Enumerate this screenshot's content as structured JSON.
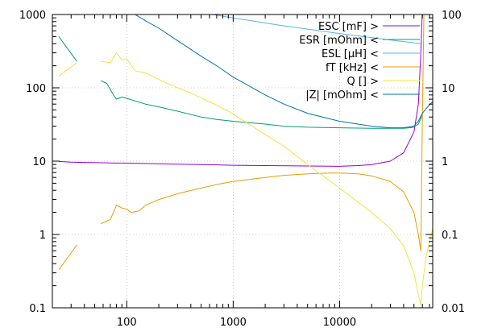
{
  "chart_data": {
    "type": "line",
    "title": "",
    "xlabel": "",
    "ylabel": "",
    "y2label": "",
    "x_scale": "log",
    "y_scale": "log",
    "y2_scale": "log",
    "xlim": [
      20,
      75000
    ],
    "ylim": [
      0.1,
      1000
    ],
    "y2lim": [
      0.01,
      100
    ],
    "grid": true,
    "legend_position": "top-right",
    "x_ticks": [
      {
        "value": 100,
        "label": "100"
      },
      {
        "value": 1000,
        "label": "1000"
      },
      {
        "value": 10000,
        "label": "10000"
      }
    ],
    "y_ticks": [
      {
        "value": 0.1,
        "label": "0.1"
      },
      {
        "value": 1,
        "label": "1"
      },
      {
        "value": 10,
        "label": "10"
      },
      {
        "value": 100,
        "label": "100"
      },
      {
        "value": 1000,
        "label": "1000"
      }
    ],
    "y2_ticks": [
      {
        "value": 0.01,
        "label": "0.01"
      },
      {
        "value": 0.1,
        "label": "0.1"
      },
      {
        "value": 1,
        "label": "1"
      },
      {
        "value": 10,
        "label": "10"
      },
      {
        "value": 100,
        "label": "100"
      }
    ],
    "series": [
      {
        "name": "ESC [mF] >",
        "color": "#9400d3",
        "axis": "y2",
        "segments": [
          [
            [
              23,
              0.99
            ],
            [
              30,
              0.97
            ],
            [
              40,
              0.96
            ],
            [
              60,
              0.95
            ],
            [
              80,
              0.94
            ],
            [
              100,
              0.94
            ],
            [
              150,
              0.93
            ],
            [
              200,
              0.92
            ],
            [
              300,
              0.91
            ],
            [
              500,
              0.9
            ],
            [
              1000,
              0.88
            ],
            [
              2000,
              0.87
            ],
            [
              5000,
              0.86
            ],
            [
              10000,
              0.85
            ],
            [
              15000,
              0.87
            ],
            [
              20000,
              0.9
            ],
            [
              30000,
              1.0
            ],
            [
              40000,
              1.3
            ],
            [
              50000,
              2.5
            ],
            [
              55000,
              6
            ],
            [
              58000,
              30
            ],
            [
              60000,
              120
            ]
          ]
        ]
      },
      {
        "name": "ESR [mOhm] <",
        "color": "#009e73",
        "axis": "y",
        "segments": [
          [
            [
              23,
              500
            ],
            [
              34,
              230
            ]
          ],
          [
            [
              57,
              125
            ],
            [
              65,
              115
            ],
            [
              70,
              95
            ],
            [
              75,
              80
            ],
            [
              80,
              70
            ],
            [
              90,
              75
            ],
            [
              100,
              72
            ],
            [
              150,
              60
            ],
            [
              200,
              55
            ],
            [
              300,
              48
            ],
            [
              500,
              40
            ],
            [
              700,
              37
            ],
            [
              1000,
              35
            ],
            [
              2000,
              32
            ],
            [
              3000,
              30
            ],
            [
              5000,
              29
            ],
            [
              10000,
              28.5
            ],
            [
              20000,
              28
            ],
            [
              30000,
              28
            ],
            [
              40000,
              28
            ],
            [
              45000,
              28.5
            ],
            [
              50000,
              29
            ],
            [
              55000,
              32
            ],
            [
              58000,
              38
            ],
            [
              60000,
              45
            ]
          ]
        ]
      },
      {
        "name": "ESL [μH] <",
        "color": "#56b4e9",
        "axis": "y",
        "segments": [
          [
            [
              25,
              1000
            ],
            [
              100,
              1500
            ],
            [
              300,
              1200
            ],
            [
              1000,
              900
            ],
            [
              3000,
              700
            ],
            [
              10000,
              550
            ],
            [
              30000,
              450
            ],
            [
              60000,
              400
            ]
          ]
        ]
      },
      {
        "name": "fT [kHz] <",
        "color": "#e69f00",
        "axis": "y",
        "segments": [
          [
            [
              23,
              0.33
            ],
            [
              34,
              0.72
            ]
          ],
          [
            [
              57,
              1.4
            ],
            [
              70,
              1.6
            ],
            [
              80,
              2.5
            ],
            [
              90,
              2.3
            ],
            [
              100,
              2.2
            ],
            [
              110,
              2.0
            ],
            [
              130,
              2.1
            ],
            [
              150,
              2.5
            ],
            [
              200,
              3.0
            ],
            [
              300,
              3.6
            ],
            [
              500,
              4.3
            ],
            [
              700,
              4.8
            ],
            [
              1000,
              5.3
            ],
            [
              2000,
              6.0
            ],
            [
              3000,
              6.4
            ],
            [
              5000,
              6.7
            ],
            [
              8000,
              6.9
            ],
            [
              10000,
              6.9
            ],
            [
              15000,
              6.7
            ],
            [
              20000,
              6.3
            ],
            [
              30000,
              5.3
            ],
            [
              40000,
              3.8
            ],
            [
              50000,
              2.0
            ],
            [
              55000,
              1.0
            ],
            [
              58000,
              0.6
            ],
            [
              60000,
              40
            ],
            [
              62000,
              1000
            ]
          ]
        ]
      },
      {
        "name": "Q [] >",
        "color": "#f0e442",
        "axis": "y2",
        "segments": [
          [
            [
              23,
              14.5
            ],
            [
              34,
              22
            ]
          ],
          [
            [
              57,
              23
            ],
            [
              70,
              22
            ],
            [
              80,
              30
            ],
            [
              90,
              24
            ],
            [
              100,
              25
            ],
            [
              120,
              17
            ],
            [
              150,
              16
            ],
            [
              200,
              13
            ],
            [
              300,
              10
            ],
            [
              400,
              8.5
            ],
            [
              500,
              7.3
            ],
            [
              700,
              5.8
            ],
            [
              1000,
              4.4
            ],
            [
              2000,
              2.3
            ],
            [
              3000,
              1.6
            ],
            [
              5000,
              0.9
            ],
            [
              10000,
              0.43
            ],
            [
              20000,
              0.2
            ],
            [
              30000,
              0.12
            ],
            [
              40000,
              0.07
            ],
            [
              50000,
              0.03
            ],
            [
              55000,
              0.015
            ],
            [
              58000,
              0.011
            ],
            [
              60000,
              0.02
            ],
            [
              65000,
              0.05
            ],
            [
              75000,
              0.12
            ]
          ]
        ]
      },
      {
        "name": "|Z| [mOhm] <",
        "color": "#0072b2",
        "axis": "y",
        "segments": [
          [
            [
              100,
              1500
            ],
            [
              120,
              1000
            ],
            [
              150,
              820
            ],
            [
              200,
              650
            ],
            [
              300,
              440
            ],
            [
              500,
              270
            ],
            [
              700,
              200
            ],
            [
              1000,
              140
            ],
            [
              2000,
              80
            ],
            [
              3000,
              60
            ],
            [
              5000,
              45
            ],
            [
              10000,
              35
            ],
            [
              20000,
              30
            ],
            [
              30000,
              28.5
            ],
            [
              40000,
              28.5
            ],
            [
              50000,
              30
            ],
            [
              55000,
              35
            ],
            [
              60000,
              45
            ],
            [
              65000,
              52
            ],
            [
              75000,
              65
            ]
          ]
        ]
      }
    ]
  }
}
